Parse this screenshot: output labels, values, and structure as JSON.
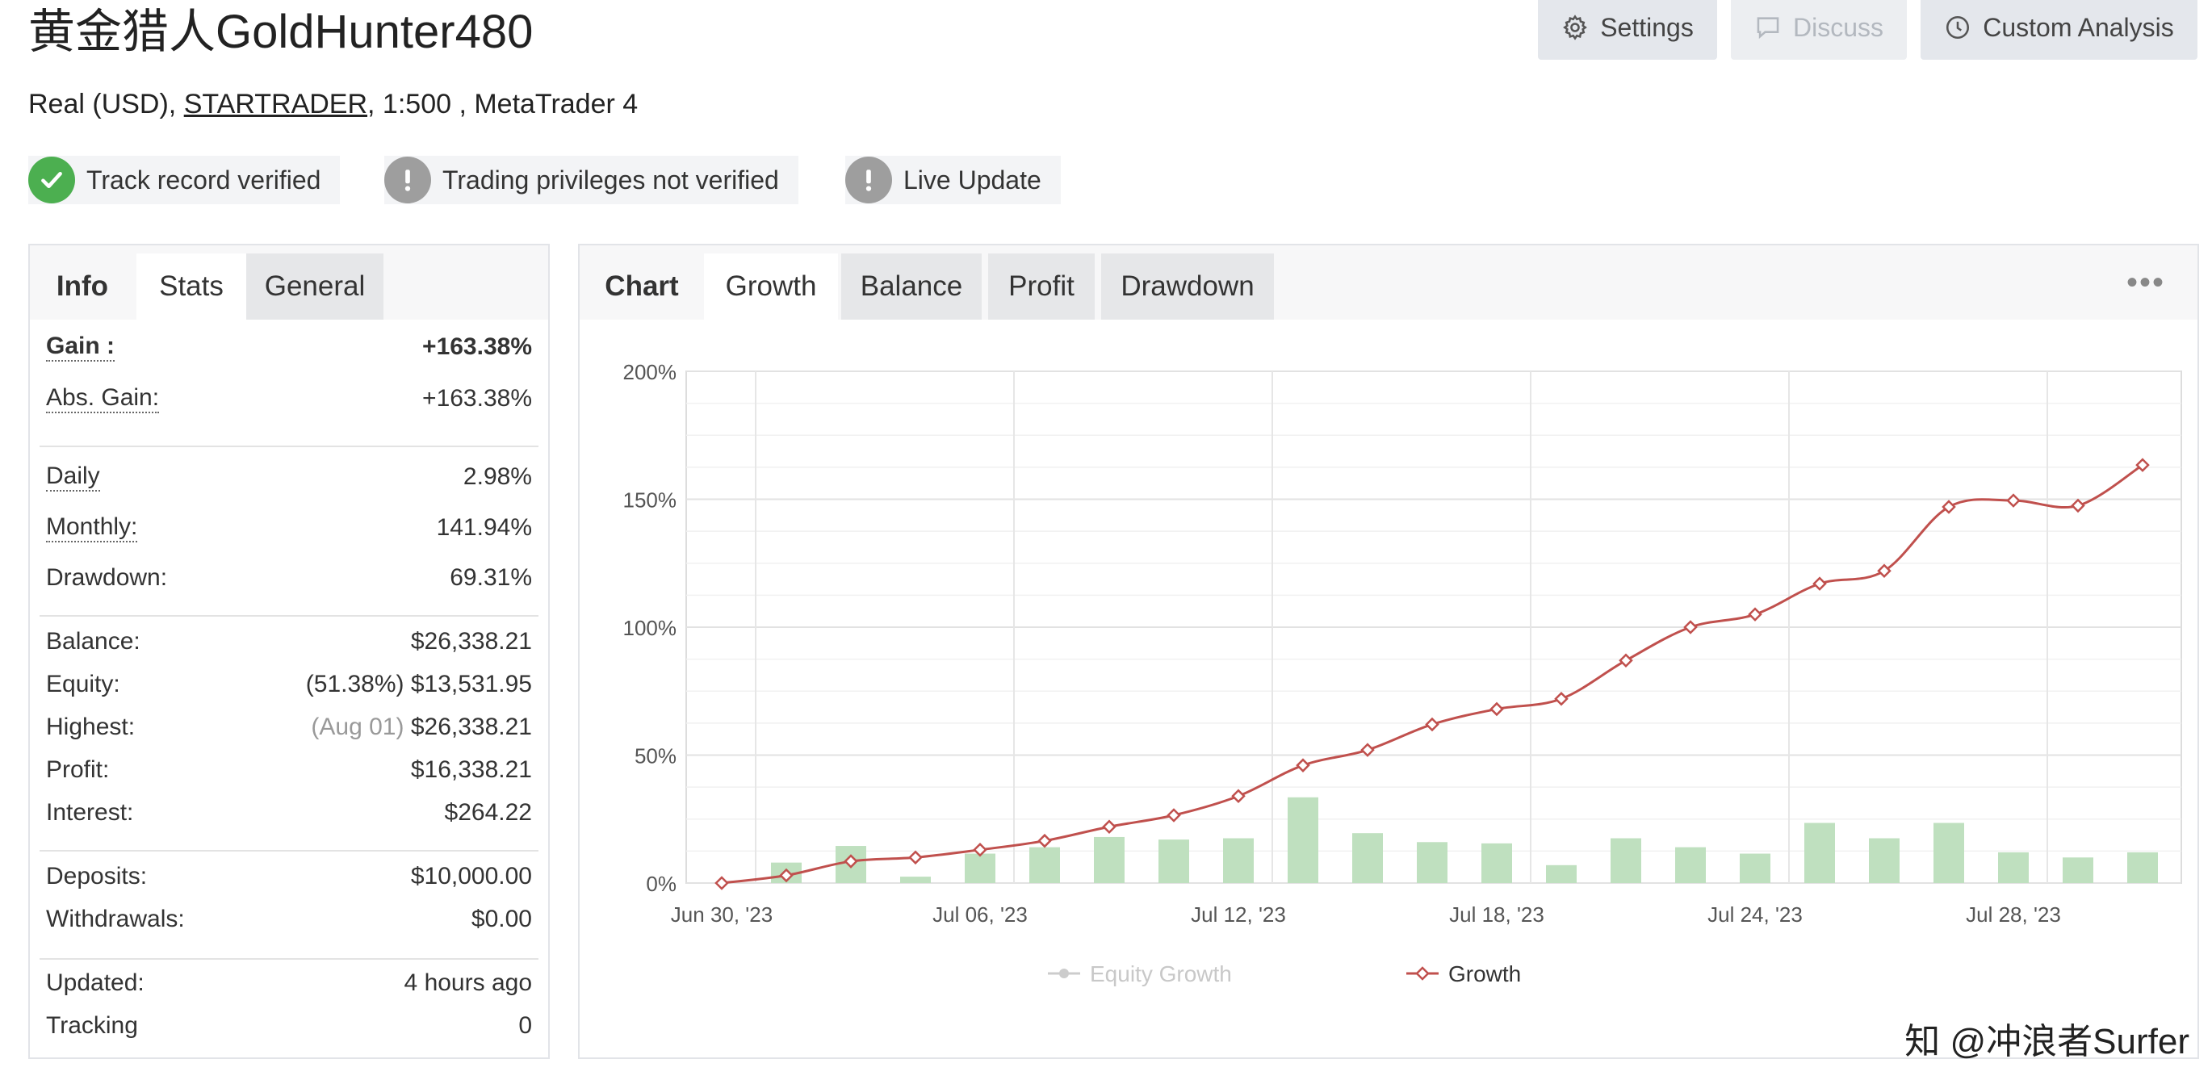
{
  "header": {
    "title": "黄金猎人GoldHunter480",
    "subtitle_prefix": "Real (USD), ",
    "broker": "STARTRADER",
    "subtitle_suffix": ", 1:500 , MetaTrader 4",
    "buttons": {
      "settings": "Settings",
      "discuss": "Discuss",
      "custom_analysis": "Custom Analysis"
    }
  },
  "badges": [
    {
      "label": "Track record verified",
      "status": "verified",
      "color": "#4caf50"
    },
    {
      "label": "Trading privileges not verified",
      "status": "warning",
      "color": "#9e9e9e"
    },
    {
      "label": "Live Update",
      "status": "warning",
      "color": "#9e9e9e"
    }
  ],
  "left_tabs": {
    "label": "Info",
    "active": "Stats",
    "other": "General"
  },
  "stats": {
    "gain": {
      "label": "Gain :",
      "value": "+163.38%"
    },
    "abs_gain": {
      "label": "Abs. Gain:",
      "value": "+163.38%"
    },
    "daily": {
      "label": "Daily",
      "value": "2.98%"
    },
    "monthly": {
      "label": "Monthly:",
      "value": "141.94%"
    },
    "drawdown": {
      "label": "Drawdown:",
      "value": "69.31%"
    },
    "balance": {
      "label": "Balance:",
      "value": "$26,338.21"
    },
    "equity": {
      "label": "Equity:",
      "note": "(51.38%)",
      "value": "$13,531.95"
    },
    "highest": {
      "label": "Highest:",
      "note": "(Aug 01)",
      "value": "$26,338.21"
    },
    "profit": {
      "label": "Profit:",
      "value": "$16,338.21"
    },
    "interest": {
      "label": "Interest:",
      "value": "$264.22"
    },
    "deposits": {
      "label": "Deposits:",
      "value": "$10,000.00"
    },
    "withdrawals": {
      "label": "Withdrawals:",
      "value": "$0.00"
    },
    "updated": {
      "label": "Updated:",
      "value": "4 hours ago"
    },
    "tracking": {
      "label": "Tracking",
      "value": "0"
    }
  },
  "chart_tabs": {
    "label": "Chart",
    "active": "Growth",
    "others": [
      "Balance",
      "Profit",
      "Drawdown"
    ],
    "more_icon": "ellipsis-icon"
  },
  "chart_data": {
    "type": "line",
    "ylim": [
      0,
      200
    ],
    "y_ticks": [
      "0%",
      "50%",
      "100%",
      "150%",
      "200%"
    ],
    "x_tick_labels": [
      "Jun 30, '23",
      "Jul 06, '23",
      "Jul 12, '23",
      "Jul 18, '23",
      "Jul 24, '23",
      "Jul 28, '23"
    ],
    "series": [
      {
        "name": "Growth",
        "color": "#c0504d",
        "values": [
          0,
          3,
          8.5,
          10,
          13,
          16.5,
          22,
          26.5,
          34,
          46,
          52,
          62,
          68,
          72,
          87,
          100,
          105,
          117,
          122,
          147,
          149.5,
          147.5,
          163.38
        ]
      },
      {
        "name": "Equity Growth",
        "color": "#bbbbbb",
        "values": []
      }
    ],
    "bars": {
      "color": "#bfe0bf",
      "values": [
        null,
        8,
        14.5,
        2.5,
        11.5,
        14,
        18,
        17,
        17.5,
        33.5,
        19.5,
        16,
        15.5,
        7,
        17.5,
        14,
        11.5,
        23.5,
        17.5,
        23.5,
        12,
        10,
        12
      ]
    },
    "legend": {
      "position": "bottom",
      "equity_label": "Equity Growth",
      "growth_label": "Growth"
    }
  },
  "watermark": "知 @冲浪者Surfer"
}
